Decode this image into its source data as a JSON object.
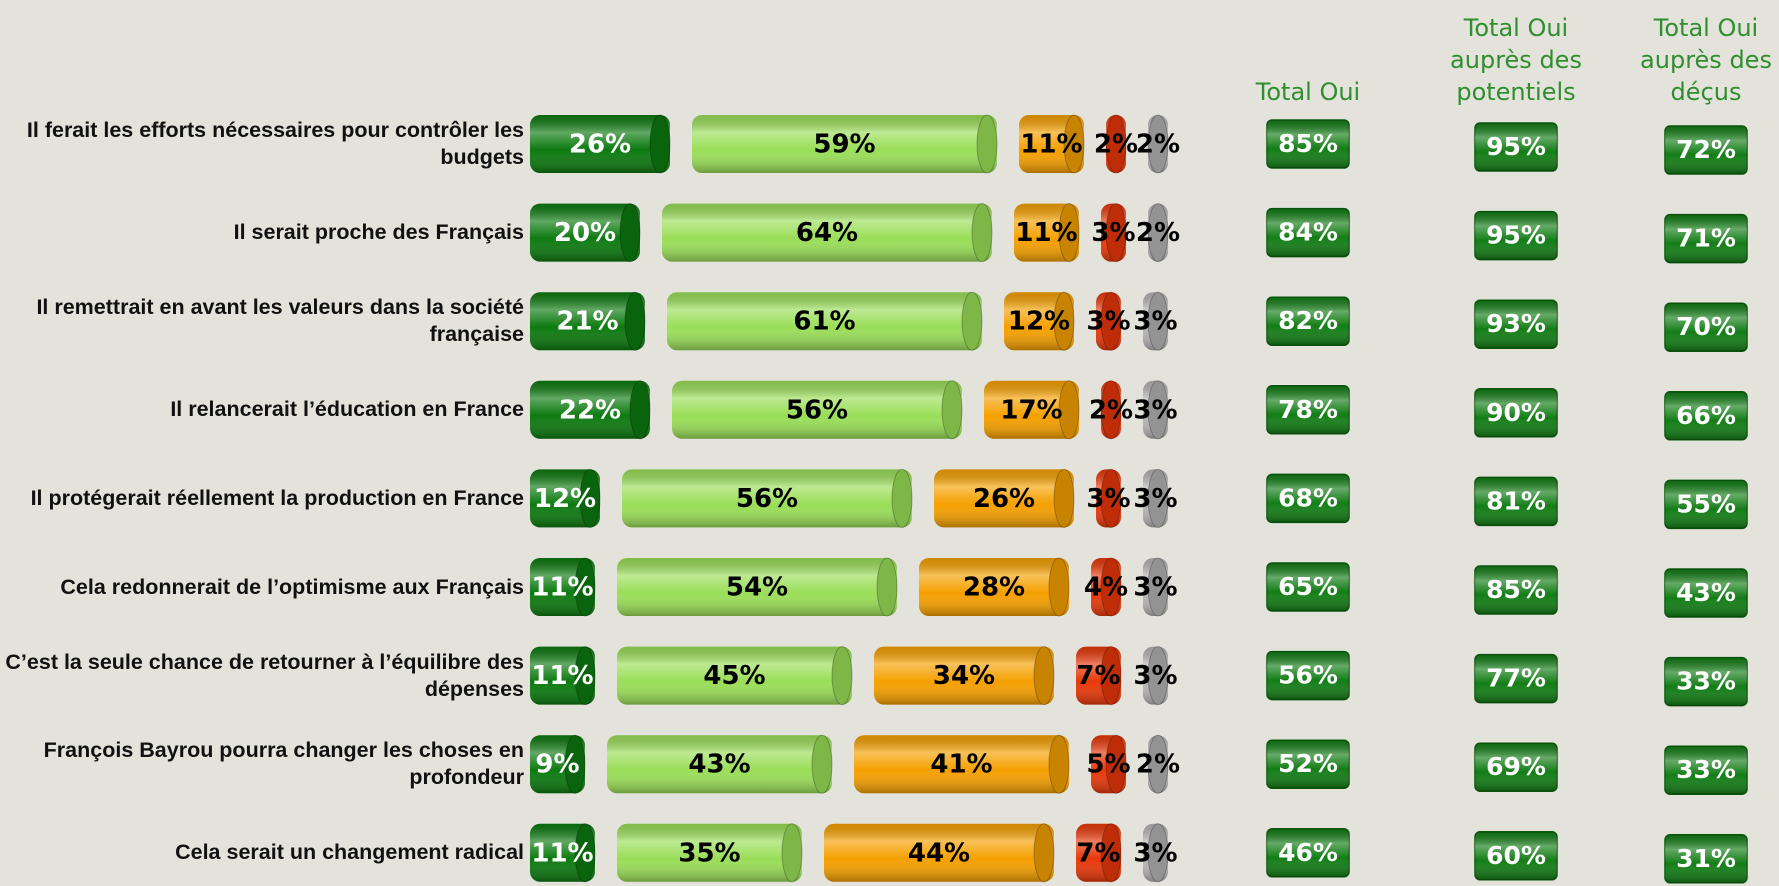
{
  "chart_data": {
    "type": "bar",
    "orientation": "horizontal",
    "stacked": true,
    "xlim": [
      0,
      100
    ],
    "categories": [
      "Il ferait les efforts nécessaires pour contrôler les budgets",
      "Il serait proche des Français",
      "Il remettrait en avant les valeurs dans la société française",
      "Il relancerait l’éducation en France",
      "Il protégerait réellement la production en France",
      "Cela redonnerait de l’optimisme aux Français",
      "C’est la seule chance de retourner à l’équilibre des dépenses",
      "François Bayrou pourra changer les choses en profondeur",
      "Cela serait un changement radical"
    ],
    "series": [
      {
        "color": "#0d7a10",
        "values": [
          26,
          20,
          21,
          22,
          12,
          11,
          11,
          9,
          11
        ],
        "value_labels": [
          "26%",
          "20%",
          "21%",
          "22%",
          "12%",
          "11%",
          "11%",
          "9%",
          "11%"
        ]
      },
      {
        "color": "#9ade58",
        "values": [
          59,
          64,
          61,
          56,
          56,
          54,
          45,
          43,
          35
        ],
        "value_labels": [
          "59%",
          "64%",
          "61%",
          "56%",
          "56%",
          "54%",
          "45%",
          "43%",
          "35%"
        ]
      },
      {
        "color": "#f5a000",
        "values": [
          11,
          11,
          12,
          17,
          26,
          28,
          34,
          41,
          44
        ],
        "value_labels": [
          "11%",
          "11%",
          "12%",
          "17%",
          "26%",
          "28%",
          "34%",
          "41%",
          "44%"
        ]
      },
      {
        "color": "#e8380a",
        "values": [
          2,
          3,
          3,
          2,
          3,
          4,
          7,
          5,
          7
        ],
        "value_labels": [
          "2%",
          "3%",
          "3%",
          "2%",
          "3%",
          "4%",
          "7%",
          "5%",
          "7%"
        ]
      },
      {
        "color": "#b4b4b4",
        "values": [
          2,
          2,
          3,
          3,
          3,
          3,
          3,
          2,
          3
        ],
        "value_labels": [
          "2%",
          "2%",
          "3%",
          "3%",
          "3%",
          "3%",
          "3%",
          "2%",
          "3%"
        ]
      }
    ],
    "totals": [
      {
        "title": "Total Oui",
        "values": [
          85,
          84,
          82,
          78,
          68,
          65,
          56,
          52,
          46
        ],
        "value_labels": [
          "85%",
          "84%",
          "82%",
          "78%",
          "68%",
          "65%",
          "56%",
          "52%",
          "46%"
        ]
      },
      {
        "title": "Total Oui auprès des potentiels",
        "values": [
          95,
          95,
          93,
          90,
          81,
          85,
          77,
          69,
          60
        ],
        "value_labels": [
          "95%",
          "95%",
          "93%",
          "90%",
          "81%",
          "85%",
          "77%",
          "69%",
          "60%"
        ]
      },
      {
        "title": "Total Oui auprès des déçus",
        "values": [
          72,
          71,
          70,
          66,
          55,
          43,
          33,
          33,
          31
        ],
        "value_labels": [
          "72%",
          "71%",
          "70%",
          "66%",
          "55%",
          "43%",
          "33%",
          "33%",
          "31%"
        ]
      }
    ]
  }
}
